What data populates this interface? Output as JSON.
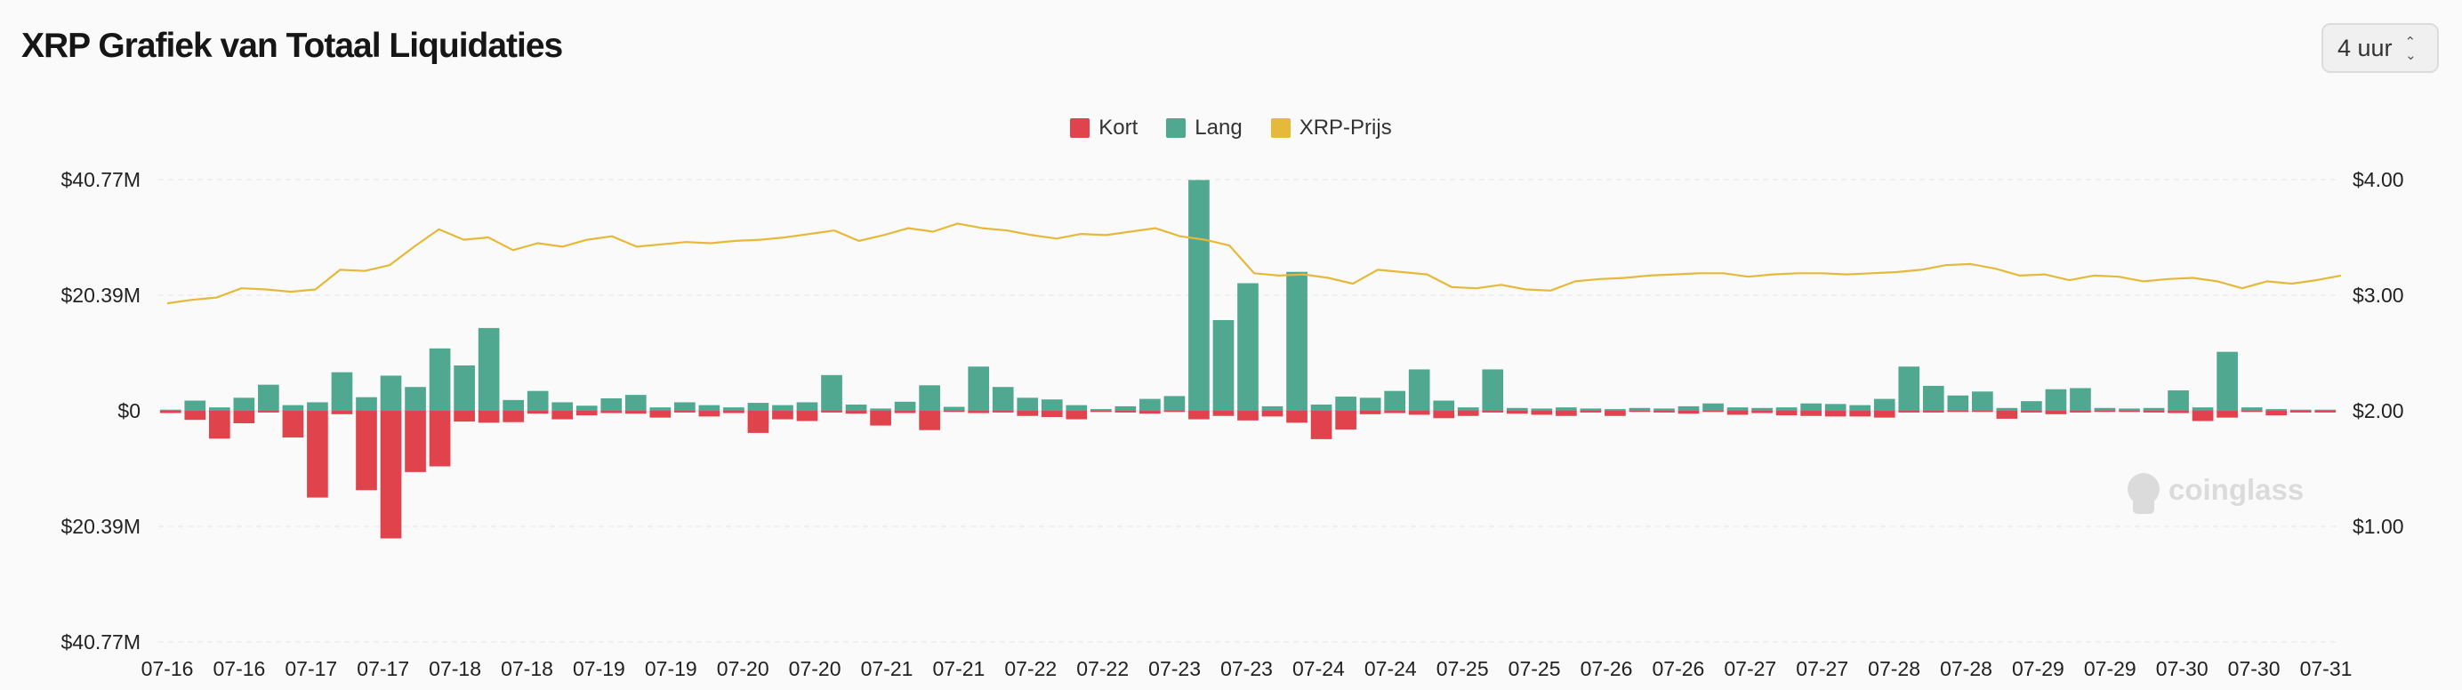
{
  "header": {
    "title": "XRP Grafiek van Totaal Liquidaties",
    "interval": "4 uur"
  },
  "colors": {
    "short": "#e0434c",
    "long": "#50a891",
    "price": "#e6b93a",
    "grid": "#ececec"
  },
  "watermark": {
    "text": "coinglass",
    "icon": "coinglass-logo-icon"
  },
  "chart_data": {
    "type": "bar",
    "legend": [
      {
        "name": "Kort",
        "color": "#e0434c"
      },
      {
        "name": "Lang",
        "color": "#50a891"
      },
      {
        "name": "XRP-Prijs",
        "color": "#e6b93a"
      }
    ],
    "legend_position": "top-center",
    "grid": true,
    "left_axis": {
      "ticks": [
        40.77,
        20.39,
        0,
        -20.39,
        -40.77
      ],
      "tick_labels": [
        "$40.77M",
        "$20.39M",
        "$0",
        "$20.39M",
        "$40.77M"
      ],
      "range": [
        -40.77,
        40.77
      ]
    },
    "right_axis": {
      "ticks": [
        4.0,
        3.0,
        2.0,
        1.0
      ],
      "tick_labels": [
        "$4.00",
        "$3.00",
        "$2.00",
        "$1.00"
      ],
      "range": [
        0,
        4.0
      ]
    },
    "x_tick_labels": [
      "07-16",
      "07-16",
      "07-17",
      "07-17",
      "07-18",
      "07-18",
      "07-19",
      "07-19",
      "07-20",
      "07-20",
      "07-21",
      "07-21",
      "07-22",
      "07-22",
      "07-23",
      "07-23",
      "07-24",
      "07-24",
      "07-25",
      "07-25",
      "07-26",
      "07-26",
      "07-27",
      "07-27",
      "07-28",
      "07-28",
      "07-29",
      "07-29",
      "07-30",
      "07-30",
      "07-31"
    ],
    "series": [
      {
        "name": "Lang",
        "values": [
          0.2,
          1.8,
          0.6,
          2.3,
          4.6,
          1.0,
          1.5,
          6.8,
          2.4,
          6.2,
          4.2,
          11.0,
          8.0,
          14.6,
          1.9,
          3.5,
          1.5,
          0.9,
          2.2,
          2.8,
          0.6,
          1.5,
          1.0,
          0.6,
          1.4,
          1.0,
          1.5,
          6.3,
          1.1,
          0.4,
          1.6,
          4.5,
          0.7,
          7.8,
          4.2,
          2.3,
          2.0,
          1.0,
          0.3,
          0.8,
          2.1,
          2.6,
          40.7,
          16.0,
          22.5,
          0.8,
          24.5,
          1.1,
          2.5,
          2.3,
          3.5,
          7.3,
          1.8,
          0.6,
          7.3,
          0.5,
          0.4,
          0.6,
          0.4,
          0.3,
          0.5,
          0.4,
          0.8,
          1.3,
          0.6,
          0.5,
          0.6,
          1.3,
          1.2,
          1.0,
          2.1,
          7.8,
          4.4,
          2.7,
          3.4,
          0.5,
          1.7,
          3.8,
          4.0,
          0.5,
          0.4,
          0.5,
          3.6,
          0.6,
          10.4,
          0.6,
          0.3,
          0.2,
          0.2
        ],
        "negative": false
      },
      {
        "name": "Kort",
        "values": [
          0.4,
          1.6,
          4.9,
          2.2,
          0.3,
          4.7,
          15.3,
          0.6,
          14.0,
          22.5,
          10.8,
          9.8,
          1.9,
          2.1,
          2.0,
          0.5,
          1.5,
          0.8,
          0.4,
          0.5,
          1.2,
          0.3,
          1.0,
          0.4,
          3.9,
          1.5,
          1.8,
          0.3,
          0.5,
          2.6,
          0.4,
          3.4,
          0.2,
          0.4,
          0.3,
          0.9,
          1.1,
          1.5,
          0.2,
          0.3,
          0.5,
          0.2,
          1.5,
          0.9,
          1.7,
          1.0,
          2.1,
          5.0,
          3.3,
          0.6,
          0.4,
          0.7,
          1.3,
          0.9,
          0.3,
          0.5,
          0.7,
          0.9,
          0.3,
          0.9,
          0.2,
          0.3,
          0.5,
          0.2,
          0.7,
          0.4,
          0.8,
          0.9,
          1.0,
          1.0,
          1.2,
          0.3,
          0.3,
          0.2,
          0.2,
          1.4,
          0.3,
          0.6,
          0.3,
          0.2,
          0.2,
          0.3,
          0.4,
          1.8,
          1.2,
          0.2,
          0.8,
          0.3,
          0.3
        ],
        "negative": true
      },
      {
        "name": "XRP-Prijs",
        "axis": "right",
        "values": [
          2.93,
          2.96,
          2.98,
          3.06,
          3.05,
          3.03,
          3.05,
          3.22,
          3.21,
          3.26,
          3.42,
          3.57,
          3.48,
          3.5,
          3.39,
          3.45,
          3.42,
          3.48,
          3.51,
          3.42,
          3.44,
          3.46,
          3.45,
          3.47,
          3.48,
          3.5,
          3.53,
          3.56,
          3.47,
          3.52,
          3.58,
          3.55,
          3.62,
          3.58,
          3.56,
          3.52,
          3.49,
          3.53,
          3.52,
          3.55,
          3.58,
          3.51,
          3.48,
          3.43,
          3.19,
          3.17,
          3.18,
          3.15,
          3.1,
          3.22,
          3.2,
          3.18,
          3.07,
          3.06,
          3.09,
          3.05,
          3.04,
          3.12,
          3.14,
          3.15,
          3.17,
          3.18,
          3.19,
          3.19,
          3.16,
          3.18,
          3.19,
          3.19,
          3.18,
          3.19,
          3.2,
          3.22,
          3.26,
          3.27,
          3.23,
          3.17,
          3.18,
          3.13,
          3.17,
          3.16,
          3.12,
          3.14,
          3.15,
          3.12,
          3.06,
          3.12,
          3.1,
          3.13,
          3.17
        ]
      }
    ]
  }
}
